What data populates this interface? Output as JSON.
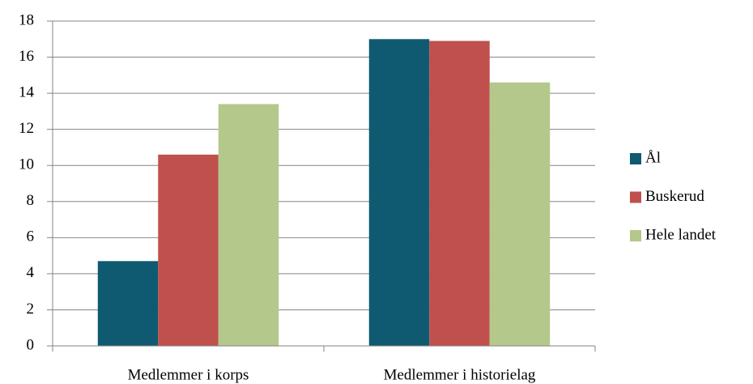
{
  "chart_data": {
    "type": "bar",
    "categories": [
      "Medlemmer i korps",
      "Medlemmer i historielag"
    ],
    "series": [
      {
        "name": "Ål",
        "color": "#0f5a71",
        "values": [
          4.7,
          17.0
        ]
      },
      {
        "name": "Buskerud",
        "color": "#c0504d",
        "values": [
          10.6,
          16.9
        ]
      },
      {
        "name": "Hele landet",
        "color": "#b3c88a",
        "values": [
          13.4,
          14.6
        ]
      }
    ],
    "ylim": [
      0,
      18
    ],
    "yticks": [
      0,
      2,
      4,
      6,
      8,
      10,
      12,
      14,
      16,
      18
    ],
    "grid": true,
    "legend": "right"
  }
}
